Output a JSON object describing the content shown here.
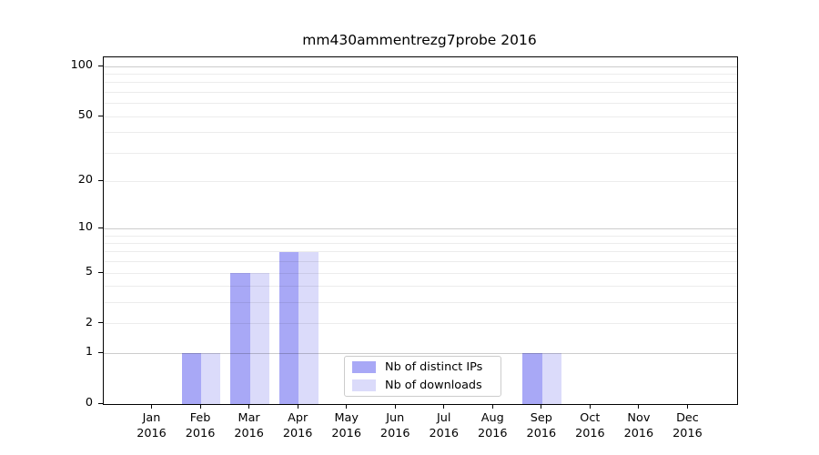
{
  "chart_data": {
    "type": "bar",
    "title": "mm430ammentrezg7probe 2016",
    "x": {
      "months": [
        "Jan",
        "Feb",
        "Mar",
        "Apr",
        "May",
        "Jun",
        "Jul",
        "Aug",
        "Sep",
        "Oct",
        "Nov",
        "Dec"
      ],
      "year": "2016"
    },
    "series": [
      {
        "name": "Nb of distinct IPs",
        "color": "#a8a8f6",
        "values": [
          0,
          1,
          5,
          7,
          0,
          0,
          0,
          0,
          1,
          0,
          0,
          0
        ]
      },
      {
        "name": "Nb of downloads",
        "color": "#dbdbfa",
        "values": [
          0,
          1,
          5,
          7,
          0,
          0,
          0,
          0,
          1,
          0,
          0,
          0
        ]
      }
    ],
    "y_axis": {
      "scale": "log10(value+1)",
      "tick_values": [
        0,
        1,
        2,
        5,
        10,
        20,
        50,
        100
      ],
      "tick_labels": [
        "0",
        "1",
        "2",
        "5",
        "10",
        "20",
        "50",
        "100"
      ],
      "minor_grid_values": [
        2,
        3,
        4,
        5,
        6,
        7,
        8,
        9,
        20,
        30,
        40,
        50,
        60,
        70,
        80,
        90
      ],
      "major_grid_values": [
        1,
        10,
        100
      ],
      "ymin": 0,
      "ymax": 115
    },
    "legend": {
      "entries": [
        "Nb of distinct IPs",
        "Nb of downloads"
      ],
      "position": "lower center"
    },
    "grid": "on",
    "background": "#ffffff",
    "axis_color": "#000000"
  }
}
